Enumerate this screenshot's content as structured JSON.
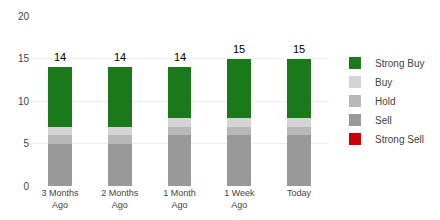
{
  "chart_data": {
    "type": "bar",
    "stacked": true,
    "categories": [
      "3 Months\nAgo",
      "2 Months\nAgo",
      "1 Month\nAgo",
      "1 Week\nAgo",
      "Today"
    ],
    "series": [
      {
        "name": "Strong Sell",
        "color": "#cc0000",
        "values": [
          0,
          0,
          0,
          0,
          0
        ]
      },
      {
        "name": "Sell",
        "color": "#999999",
        "values": [
          5,
          5,
          6,
          6,
          6
        ]
      },
      {
        "name": "Hold",
        "color": "#b8b8b8",
        "values": [
          1,
          1,
          1,
          1,
          1
        ]
      },
      {
        "name": "Buy",
        "color": "#d4d4d4",
        "values": [
          1,
          1,
          1,
          1,
          1
        ]
      },
      {
        "name": "Strong Buy",
        "color": "#1a7a1a",
        "values": [
          7,
          7,
          6,
          7,
          7
        ]
      }
    ],
    "totals": [
      14,
      14,
      14,
      15,
      15
    ],
    "ylim": [
      0,
      20
    ],
    "yticks": [
      0,
      5,
      10,
      15,
      20
    ],
    "grid": true,
    "legend": "right"
  }
}
